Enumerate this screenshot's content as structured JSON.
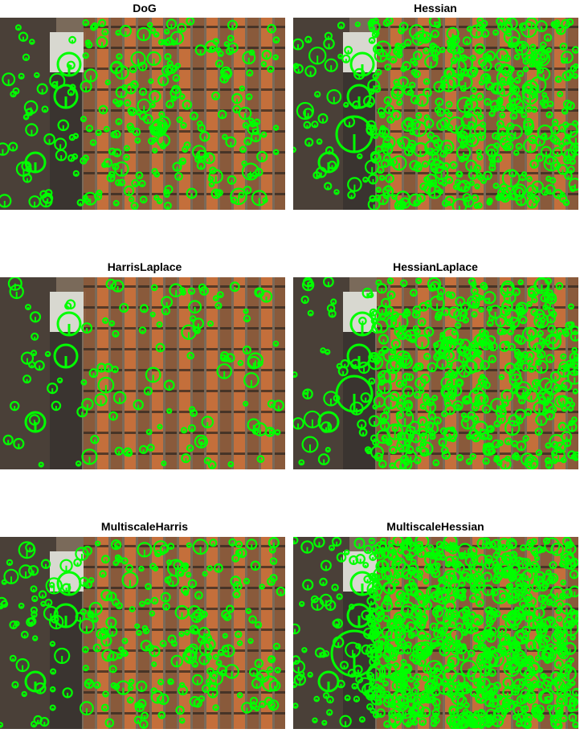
{
  "figure": {
    "panels": [
      {
        "title": "DoG",
        "density": "medium"
      },
      {
        "title": "Hessian",
        "density": "high"
      },
      {
        "title": "HarrisLaplace",
        "density": "low"
      },
      {
        "title": "HessianLaplace",
        "density": "high"
      },
      {
        "title": "MultiscaleHarris",
        "density": "medium"
      },
      {
        "title": "MultiscaleHessian",
        "density": "very-high"
      }
    ],
    "marker_color": "#00ff00",
    "image_description_colors": {
      "wall_dark": "#4a4038",
      "wall_mid": "#7a6a5a",
      "tile_orange": "#c8703a",
      "tile_brown": "#8a5a3a",
      "window_white": "#d8d8d0"
    }
  }
}
